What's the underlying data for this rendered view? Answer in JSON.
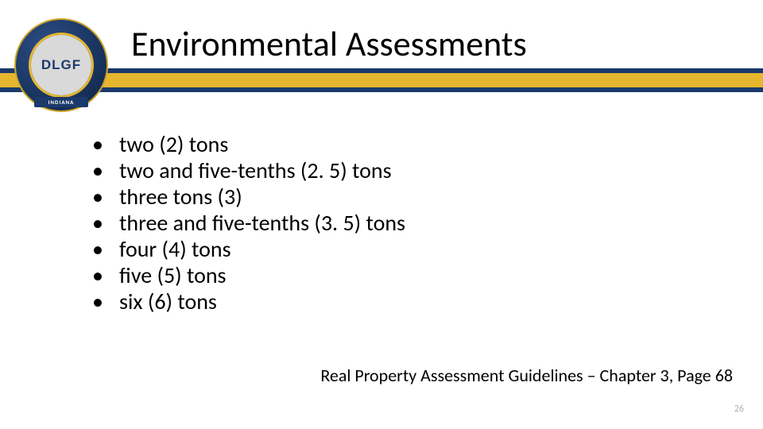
{
  "colors": {
    "navy": "#1b3a6b",
    "gold": "#e6b62e",
    "background": "#ffffff",
    "text": "#000000",
    "page_num": "#b0b0b0"
  },
  "seal": {
    "acronym": "DLGF",
    "state": "INDIANA"
  },
  "title": "Environmental Assessments",
  "bullets": [
    "two (2) tons",
    "two and five-tenths (2. 5) tons",
    "three tons (3)",
    "three and five-tenths (3. 5) tons",
    "four (4) tons",
    "five (5) tons",
    "six (6) tons"
  ],
  "footnote": "Real Property Assessment Guidelines – Chapter 3, Page 68",
  "page_number": "26",
  "typography": {
    "title_fontsize": 44,
    "bullet_fontsize": 28,
    "footnote_fontsize": 22,
    "pagenum_fontsize": 12
  }
}
